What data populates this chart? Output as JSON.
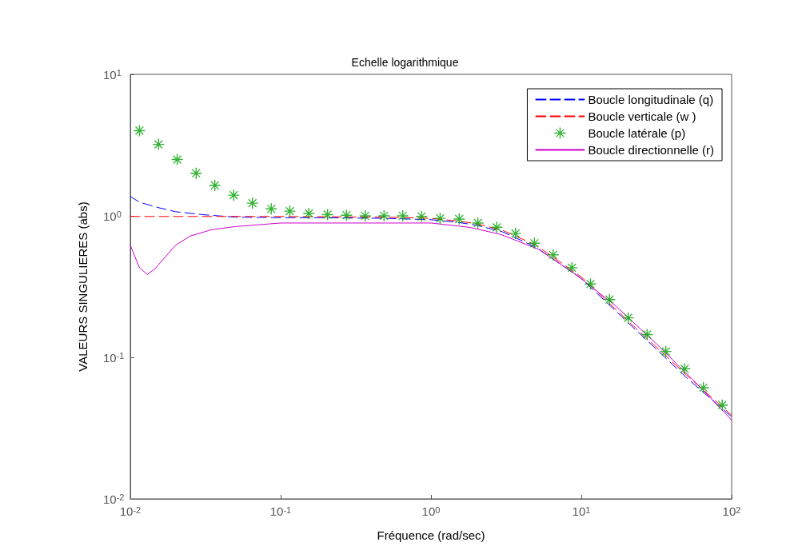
{
  "chart_data": {
    "type": "line",
    "title": "Echelle logarithmique",
    "xlabel": "Fréquence (rad/sec)",
    "ylabel": "VALEURS SINGULIERES (abs)",
    "log": "xy",
    "legend": "top right",
    "marker": "none",
    "xlim": [
      0.01,
      100
    ],
    "ylim": [
      0.01,
      10
    ],
    "xticks": [
      {
        "value": 0.01,
        "label": "10$^{-2}$"
      },
      {
        "value": 0.1,
        "label": "10$^{-1}$"
      },
      {
        "value": 1,
        "label": "10$^{0}$"
      },
      {
        "value": 10,
        "label": "10$^{1}$"
      },
      {
        "value": 100,
        "label": "10$^{2}$"
      }
    ],
    "yticks": [
      {
        "value": 0.01,
        "label": "10$^{-2}$"
      },
      {
        "value": 0.1,
        "label": "10$^{-1}$"
      },
      {
        "value": 1,
        "label": "10$^{0}$"
      },
      {
        "value": 10,
        "label": "10$^{1}$"
      }
    ],
    "series": [
      {
        "name": "Boucle longitudinale (q)",
        "color": "#0000ff",
        "line_style": "dashed",
        "x": [
          0.01,
          0.0115,
          0.015,
          0.02,
          0.03,
          0.05,
          0.1,
          0.2,
          0.5,
          1,
          1.5,
          2,
          3,
          5,
          10,
          20,
          50,
          100
        ],
        "values": [
          1.37,
          1.25,
          1.15,
          1.07,
          1.02,
          0.98,
          0.97,
          0.97,
          0.96,
          0.94,
          0.9,
          0.86,
          0.77,
          0.6,
          0.36,
          0.18,
          0.072,
          0.038
        ]
      },
      {
        "name": "Boucle verticale (w )",
        "color": "#ff0000",
        "line_style": "dashed",
        "x": [
          0.01,
          0.1,
          0.5,
          1,
          1.5,
          2,
          3,
          5,
          10,
          20,
          50,
          100
        ],
        "values": [
          0.99,
          0.99,
          0.98,
          0.96,
          0.92,
          0.88,
          0.79,
          0.62,
          0.37,
          0.185,
          0.075,
          0.039
        ]
      },
      {
        "name": "Boucle latérale (p)",
        "color": "#00a000",
        "type": "scatter",
        "marker": "star",
        "x": [
          0.0115,
          0.0154,
          0.0205,
          0.0274,
          0.0365,
          0.0487,
          0.0649,
          0.0866,
          0.115,
          0.154,
          0.205,
          0.274,
          0.365,
          0.487,
          0.649,
          0.866,
          1.15,
          1.54,
          2.05,
          2.74,
          3.65,
          4.87,
          6.49,
          8.66,
          11.5,
          15.4,
          20.5,
          27.4,
          36.5,
          48.7,
          64.9,
          86.6
        ],
        "values": [
          4.0,
          3.2,
          2.5,
          2.0,
          1.64,
          1.4,
          1.23,
          1.12,
          1.08,
          1.04,
          1.02,
          1.01,
          1.0,
          1.0,
          1.0,
          0.99,
          0.96,
          0.95,
          0.89,
          0.83,
          0.75,
          0.64,
          0.53,
          0.43,
          0.33,
          0.256,
          0.19,
          0.145,
          0.11,
          0.083,
          0.061,
          0.046
        ]
      },
      {
        "name": "Boucle directionnelle (r)",
        "color": "#cc00cc",
        "line_style": "solid",
        "x": [
          0.01,
          0.0115,
          0.013,
          0.0145,
          0.02,
          0.025,
          0.035,
          0.05,
          0.1,
          0.5,
          1,
          1.8,
          2.9,
          5.2,
          9.2,
          17,
          31,
          58,
          100
        ],
        "values": [
          0.62,
          0.43,
          0.385,
          0.42,
          0.62,
          0.72,
          0.8,
          0.84,
          0.89,
          0.89,
          0.89,
          0.83,
          0.74,
          0.58,
          0.385,
          0.23,
          0.127,
          0.066,
          0.036
        ]
      }
    ]
  }
}
